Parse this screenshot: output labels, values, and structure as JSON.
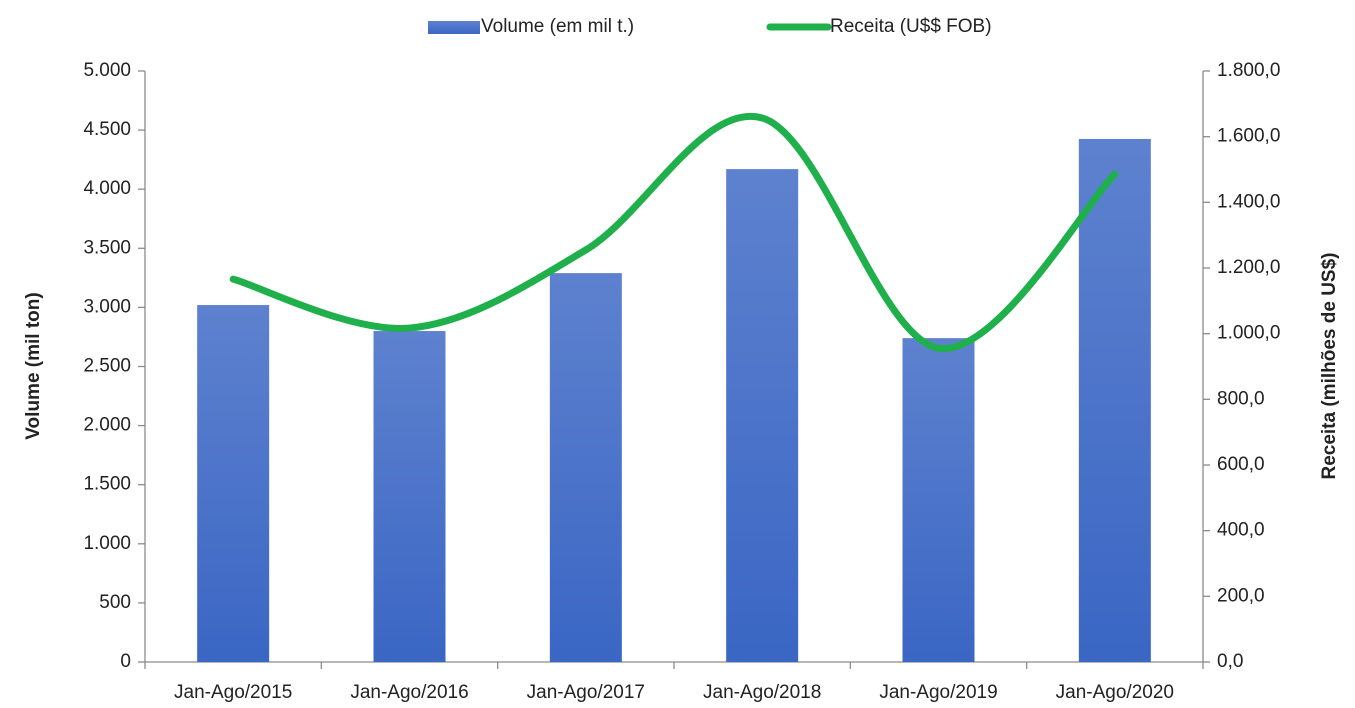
{
  "chart_data": {
    "type": "bar",
    "categories": [
      "Jan-Ago/2015",
      "Jan-Ago/2016",
      "Jan-Ago/2017",
      "Jan-Ago/2018",
      "Jan-Ago/2019",
      "Jan-Ago/2020"
    ],
    "series": [
      {
        "name": "Volume (em mil t.)",
        "type": "bar",
        "color": "#3a66c4",
        "values": [
          3020,
          2800,
          3290,
          4170,
          2740,
          4425
        ]
      },
      {
        "name": "Receita (U$$ FOB)",
        "type": "line",
        "axis": "y2",
        "color": "#1fb04b",
        "smooth": true,
        "values": [
          1166,
          1017,
          1255,
          1657,
          956,
          1486
        ]
      }
    ],
    "ylabel": "Volume (mil ton)",
    "y2label": "Receita (milhões de US$)",
    "ylim": [
      0,
      5000
    ],
    "yticks": [
      0,
      500,
      {
        "value": 1000,
        "label": "1.000"
      },
      {
        "value": 1500,
        "label": "1.500"
      },
      {
        "value": 2000,
        "label": "2.000"
      },
      {
        "value": 2500,
        "label": "2.500"
      },
      {
        "value": 3000,
        "label": "3.000"
      },
      {
        "value": 3500,
        "label": "3.500"
      },
      {
        "value": 4000,
        "label": "4.000"
      },
      {
        "value": 4500,
        "label": "4.500"
      },
      {
        "value": 5000,
        "label": "5.000"
      }
    ],
    "y2lim": [
      0,
      1800
    ],
    "y2ticks": [
      {
        "value": 0,
        "label": "0,0"
      },
      {
        "value": 200,
        "label": "200,0"
      },
      {
        "value": 400,
        "label": "400,0"
      },
      {
        "value": 600,
        "label": "600,0"
      },
      {
        "value": 800,
        "label": "800,0"
      },
      {
        "value": 1000,
        "label": "1.000,0"
      },
      {
        "value": 1200,
        "label": "1.200,0"
      },
      {
        "value": 1400,
        "label": "1.400,0"
      },
      {
        "value": 1600,
        "label": "1.600,0"
      },
      {
        "value": 1800,
        "label": "1.800,0"
      }
    ],
    "legend": "top",
    "grid": false
  }
}
